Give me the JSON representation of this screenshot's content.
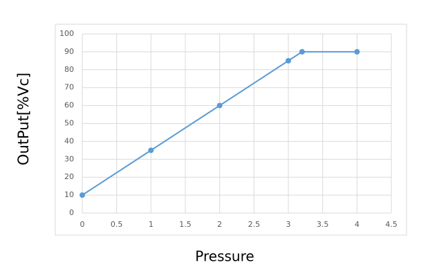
{
  "chart_data": {
    "type": "line",
    "x_label": "Pressure",
    "y_label": "OutPut[%Vc]",
    "x": [
      0,
      1,
      2,
      3,
      3.2,
      4
    ],
    "series": [
      {
        "color": "#5b9bd5",
        "values": [
          10,
          35,
          60,
          85,
          90,
          90
        ]
      }
    ],
    "xlim": [
      0,
      4.5
    ],
    "xticks": [
      0,
      0.5,
      1,
      1.5,
      2,
      2.5,
      3,
      3.5,
      4,
      4.5
    ],
    "ylim": [
      0,
      100
    ],
    "yticks": [
      0,
      10,
      20,
      30,
      40,
      50,
      60,
      70,
      80,
      90,
      100
    ],
    "grid": true
  }
}
